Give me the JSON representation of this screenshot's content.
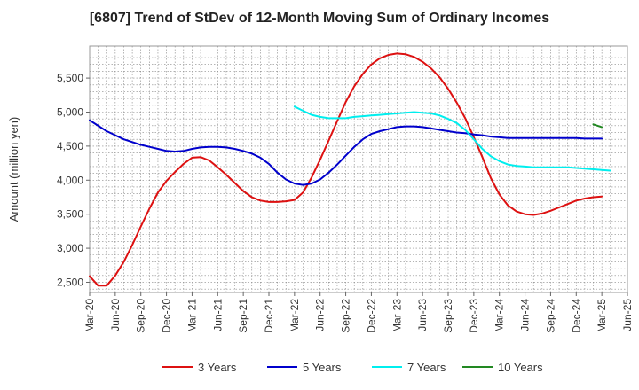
{
  "chart_data": {
    "type": "line",
    "title": "[6807]  Trend of StDev of 12-Month Moving Sum of Ordinary Incomes",
    "xlabel": "",
    "ylabel": "Amount (million yen)",
    "ylim": [
      2350,
      5970
    ],
    "yticks": [
      2500,
      3000,
      3500,
      4000,
      4500,
      5000,
      5500
    ],
    "ytick_labels": [
      "2,500",
      "3,000",
      "3,500",
      "4,000",
      "4,500",
      "5,000",
      "5,500"
    ],
    "xtick_labels": [
      "Mar-20",
      "Jun-20",
      "Sep-20",
      "Dec-20",
      "Mar-21",
      "Jun-21",
      "Sep-21",
      "Dec-21",
      "Mar-22",
      "Jun-22",
      "Sep-22",
      "Dec-22",
      "Mar-23",
      "Jun-23",
      "Sep-23",
      "Dec-23",
      "Mar-24",
      "Jun-24",
      "Sep-24",
      "Dec-24",
      "Mar-25",
      "Jun-25"
    ],
    "x_months_range": [
      0,
      63
    ],
    "grid": true,
    "legend_position": "bottom",
    "series": [
      {
        "name": "3 Years",
        "color": "#dd1111",
        "x_start": 0,
        "values": [
          2590,
          2450,
          2450,
          2600,
          2800,
          3050,
          3320,
          3580,
          3820,
          3990,
          4120,
          4240,
          4330,
          4340,
          4290,
          4190,
          4080,
          3960,
          3840,
          3750,
          3700,
          3680,
          3680,
          3690,
          3710,
          3820,
          4040,
          4300,
          4580,
          4870,
          5150,
          5380,
          5560,
          5700,
          5790,
          5840,
          5860,
          5850,
          5810,
          5740,
          5640,
          5510,
          5340,
          5140,
          4910,
          4630,
          4340,
          4030,
          3790,
          3630,
          3540,
          3500,
          3490,
          3510,
          3550,
          3600,
          3650,
          3700,
          3730,
          3750,
          3760
        ]
      },
      {
        "name": "5 Years",
        "color": "#0000cc",
        "x_start": 0,
        "values": [
          4880,
          4800,
          4720,
          4660,
          4600,
          4560,
          4520,
          4490,
          4460,
          4430,
          4420,
          4430,
          4460,
          4480,
          4490,
          4490,
          4480,
          4460,
          4430,
          4390,
          4330,
          4240,
          4110,
          4010,
          3950,
          3930,
          3950,
          4010,
          4110,
          4230,
          4360,
          4490,
          4600,
          4680,
          4720,
          4750,
          4780,
          4790,
          4790,
          4780,
          4760,
          4740,
          4720,
          4700,
          4690,
          4670,
          4660,
          4640,
          4630,
          4620,
          4620,
          4620,
          4620,
          4620,
          4620,
          4620,
          4620,
          4620,
          4610,
          4610,
          4610
        ]
      },
      {
        "name": "7 Years",
        "color": "#00eeee",
        "x_start": 24,
        "values": [
          5080,
          5020,
          4960,
          4930,
          4910,
          4910,
          4910,
          4930,
          4940,
          4950,
          4960,
          4970,
          4980,
          4990,
          5000,
          4990,
          4980,
          4950,
          4900,
          4840,
          4740,
          4600,
          4460,
          4350,
          4280,
          4230,
          4210,
          4200,
          4190,
          4190,
          4190,
          4190,
          4190,
          4180,
          4170,
          4160,
          4150,
          4140
        ]
      },
      {
        "name": "10 Years",
        "color": "#228822",
        "x_start": 59,
        "values": [
          4820,
          4780
        ]
      }
    ]
  }
}
